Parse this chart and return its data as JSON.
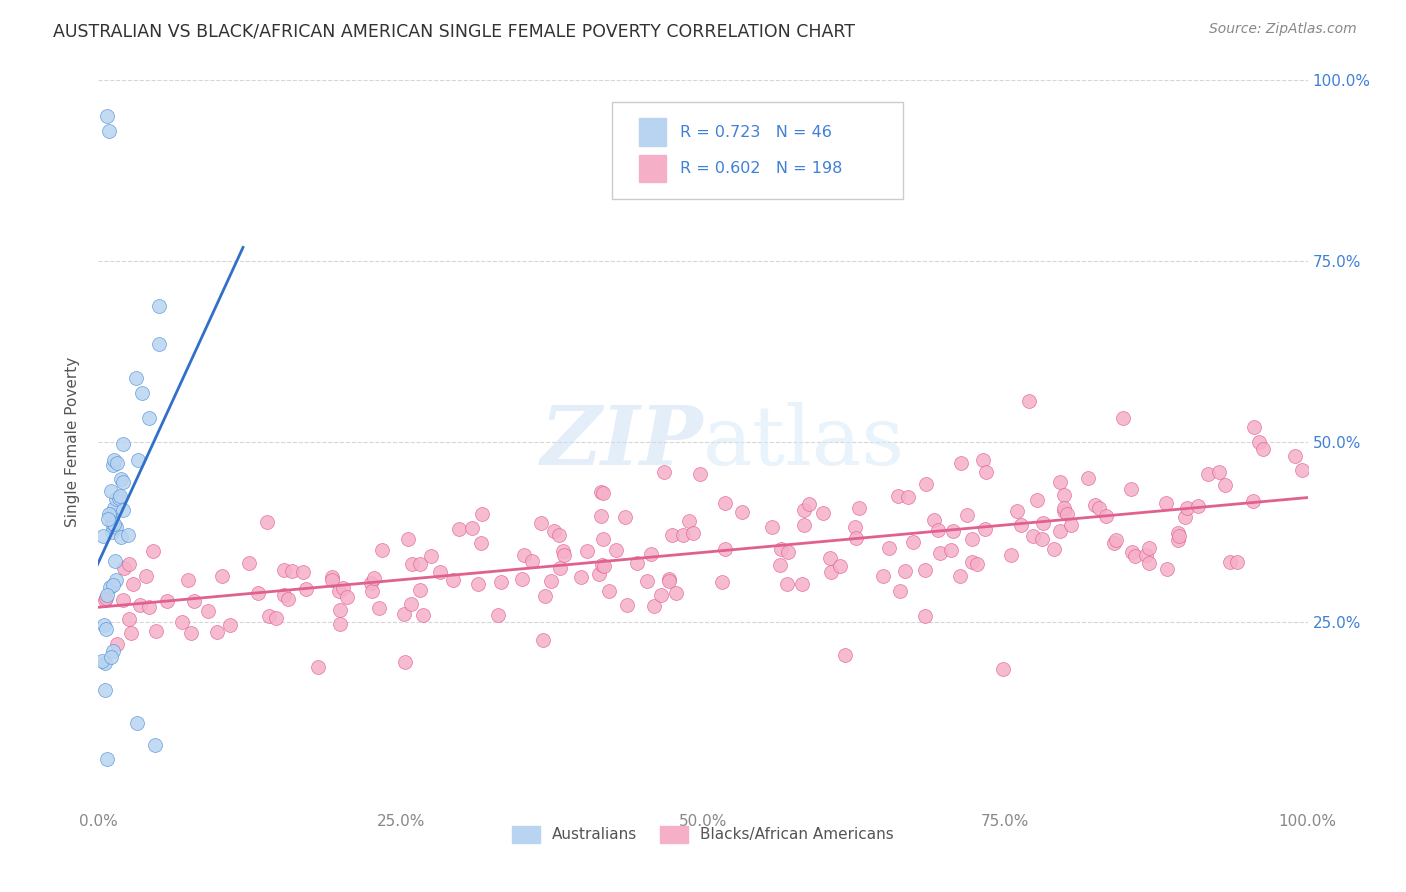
{
  "title": "AUSTRALIAN VS BLACK/AFRICAN AMERICAN SINGLE FEMALE POVERTY CORRELATION CHART",
  "source": "Source: ZipAtlas.com",
  "ylabel": "Single Female Poverty",
  "xlim": [
    0,
    1.0
  ],
  "ylim": [
    0,
    1.0
  ],
  "xtick_positions": [
    0.0,
    0.25,
    0.5,
    0.75,
    1.0
  ],
  "xtick_labels": [
    "0.0%",
    "25.0%",
    "50.0%",
    "75.0%",
    "100.0%"
  ],
  "ytick_vals_right": [
    0.25,
    0.5,
    0.75,
    1.0
  ],
  "ytick_labels_right": [
    "25.0%",
    "50.0%",
    "75.0%",
    "100.0%"
  ],
  "legend_r_australian": "0.723",
  "legend_n_australian": "46",
  "legend_r_black": "0.602",
  "legend_n_black": "198",
  "color_australian_fill": "#b8d4f0",
  "color_australian_edge": "#5090d8",
  "color_black_fill": "#f5b0c8",
  "color_black_edge": "#e06090",
  "color_line_australian": "#3070c8",
  "color_line_black": "#e06090",
  "color_text_blue": "#4080d8",
  "color_legend_text": "#4080d8",
  "background_color": "#ffffff",
  "grid_color": "#cccccc",
  "title_color": "#333333",
  "source_color": "#888888",
  "ylabel_color": "#555555",
  "watermark_color": "#ddeeff",
  "bottom_legend_color": "#555555"
}
